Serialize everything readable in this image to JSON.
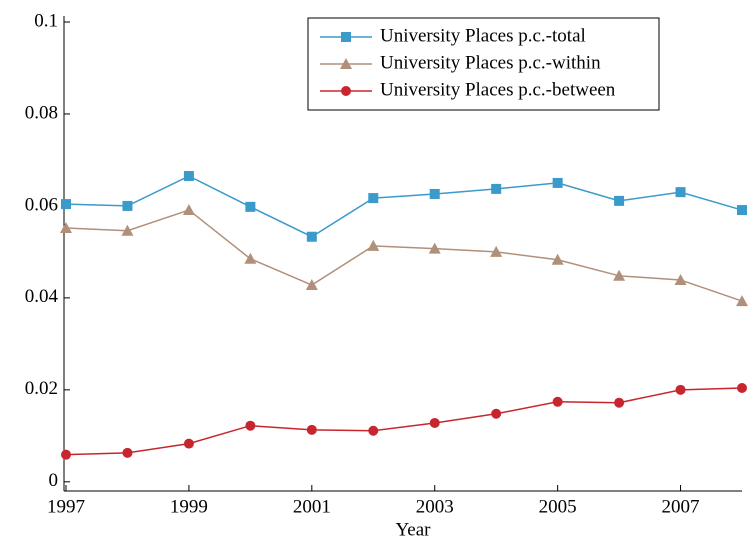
{
  "chart_data": {
    "type": "line",
    "x_label": "Year",
    "x": [
      1997,
      1998,
      1999,
      2000,
      2001,
      2002,
      2003,
      2004,
      2005,
      2006,
      2007,
      2008
    ],
    "series": [
      {
        "name": "University Places p.c.-total",
        "color": "#3a9ac9",
        "marker": "square",
        "values": [
          0.0604,
          0.06,
          0.0665,
          0.0598,
          0.0533,
          0.0617,
          0.0626,
          0.0637,
          0.065,
          0.0611,
          0.063,
          0.0591
        ]
      },
      {
        "name": "University Places p.c.-within",
        "color": "#b0907a",
        "marker": "triangle",
        "values": [
          0.0552,
          0.0546,
          0.0591,
          0.0485,
          0.0428,
          0.0513,
          0.0507,
          0.05,
          0.0483,
          0.0448,
          0.0439,
          0.0393
        ]
      },
      {
        "name": "University Places p.c.-between",
        "color": "#c8262e",
        "marker": "circle",
        "values": [
          0.0059,
          0.0063,
          0.0083,
          0.0122,
          0.0113,
          0.0111,
          0.0128,
          0.0148,
          0.0174,
          0.0172,
          0.02,
          0.0204
        ]
      }
    ],
    "xlim": [
      1997,
      2008
    ],
    "xticks": [
      1997,
      1999,
      2001,
      2003,
      2005,
      2007
    ],
    "ylim": [
      -0.002,
      0.1
    ],
    "yticks": [
      0,
      0.02,
      0.04,
      0.06,
      0.08,
      0.1
    ],
    "legend": "upper right"
  }
}
